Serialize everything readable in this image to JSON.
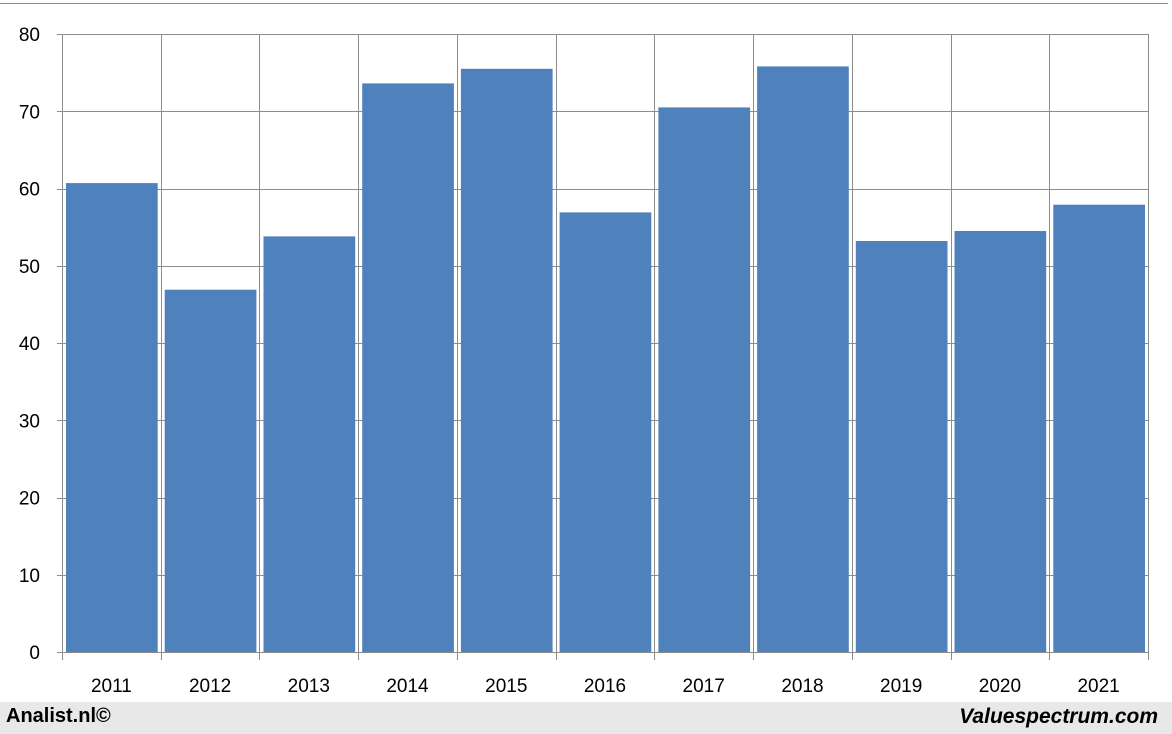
{
  "footer": {
    "left_text": "Analist.nl©",
    "right_text": "Valuespectrum.com"
  },
  "colors": {
    "bar": "#4f81bd",
    "grid": "#8c8c8c",
    "footer_bg": "#e8e8e8"
  },
  "chart_data": {
    "type": "bar",
    "categories": [
      "2011",
      "2012",
      "2013",
      "2014",
      "2015",
      "2016",
      "2017",
      "2018",
      "2019",
      "2020",
      "2021"
    ],
    "values": [
      60.7,
      46.9,
      53.8,
      73.6,
      75.5,
      56.9,
      70.5,
      75.8,
      53.2,
      54.5,
      57.9
    ],
    "ylim": [
      0,
      80
    ],
    "yticks": [
      "0",
      "10",
      "20",
      "30",
      "40",
      "50",
      "60",
      "70",
      "80"
    ],
    "grid": true,
    "title": "",
    "xlabel": "",
    "ylabel": ""
  }
}
